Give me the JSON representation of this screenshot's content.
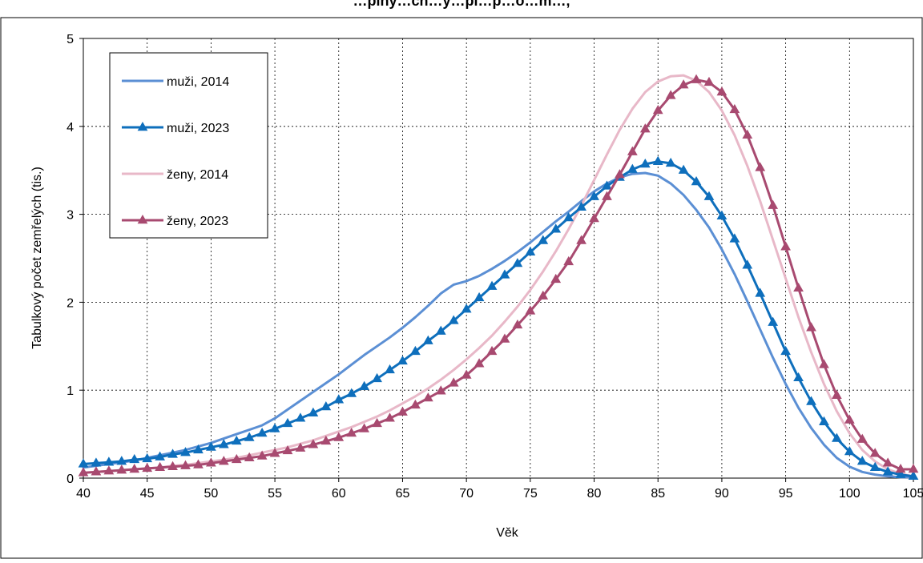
{
  "chart_data": {
    "type": "line",
    "title": "",
    "title_partial_visible": "…plný…ch…y…pl…p…o…m…,",
    "xlabel": "Věk",
    "ylabel": "Tabulkový počet zemřelých (tis.)",
    "xlim": [
      40,
      105
    ],
    "ylim": [
      0,
      5
    ],
    "x_ticks": [
      "40",
      "45",
      "50",
      "55",
      "60",
      "65",
      "70",
      "75",
      "80",
      "85",
      "90",
      "95",
      "100",
      "105"
    ],
    "y_ticks": [
      "0",
      "1",
      "2",
      "3",
      "4",
      "5"
    ],
    "grid": true,
    "legend_position": "top-left",
    "x": [
      40,
      41,
      42,
      43,
      44,
      45,
      46,
      47,
      48,
      49,
      50,
      51,
      52,
      53,
      54,
      55,
      56,
      57,
      58,
      59,
      60,
      61,
      62,
      63,
      64,
      65,
      66,
      67,
      68,
      69,
      70,
      71,
      72,
      73,
      74,
      75,
      76,
      77,
      78,
      79,
      80,
      81,
      82,
      83,
      84,
      85,
      86,
      87,
      88,
      89,
      90,
      91,
      92,
      93,
      94,
      95,
      96,
      97,
      98,
      99,
      100,
      101,
      102,
      103,
      104,
      105
    ],
    "series": [
      {
        "name": "muži, 2014",
        "color": "#5b8fd4",
        "marker": "none",
        "values": [
          0.12,
          0.14,
          0.16,
          0.18,
          0.2,
          0.23,
          0.26,
          0.29,
          0.32,
          0.36,
          0.4,
          0.45,
          0.5,
          0.55,
          0.6,
          0.68,
          0.78,
          0.88,
          0.98,
          1.08,
          1.18,
          1.29,
          1.4,
          1.5,
          1.6,
          1.71,
          1.83,
          1.96,
          2.1,
          2.2,
          2.24,
          2.3,
          2.38,
          2.47,
          2.57,
          2.68,
          2.8,
          2.92,
          3.03,
          3.15,
          3.26,
          3.35,
          3.42,
          3.46,
          3.47,
          3.44,
          3.35,
          3.22,
          3.05,
          2.85,
          2.6,
          2.32,
          2.01,
          1.69,
          1.37,
          1.07,
          0.8,
          0.57,
          0.38,
          0.23,
          0.13,
          0.07,
          0.04,
          0.02,
          0.01,
          0.01
        ]
      },
      {
        "name": "muži, 2023",
        "color": "#0e6fbc",
        "marker": "triangle",
        "values": [
          0.16,
          0.17,
          0.18,
          0.19,
          0.21,
          0.22,
          0.24,
          0.27,
          0.29,
          0.32,
          0.35,
          0.38,
          0.42,
          0.46,
          0.51,
          0.56,
          0.62,
          0.68,
          0.74,
          0.81,
          0.89,
          0.96,
          1.04,
          1.13,
          1.23,
          1.33,
          1.44,
          1.56,
          1.67,
          1.79,
          1.92,
          2.05,
          2.18,
          2.31,
          2.44,
          2.57,
          2.7,
          2.83,
          2.96,
          3.08,
          3.2,
          3.32,
          3.42,
          3.51,
          3.57,
          3.6,
          3.58,
          3.5,
          3.37,
          3.2,
          2.98,
          2.72,
          2.42,
          2.1,
          1.77,
          1.44,
          1.14,
          0.87,
          0.64,
          0.45,
          0.3,
          0.19,
          0.12,
          0.07,
          0.04,
          0.02
        ]
      },
      {
        "name": "ženy, 2014",
        "color": "#e8b8c8",
        "marker": "none",
        "values": [
          0.06,
          0.07,
          0.08,
          0.09,
          0.1,
          0.11,
          0.12,
          0.14,
          0.15,
          0.17,
          0.19,
          0.21,
          0.23,
          0.26,
          0.29,
          0.32,
          0.35,
          0.39,
          0.43,
          0.48,
          0.53,
          0.58,
          0.64,
          0.7,
          0.77,
          0.85,
          0.93,
          1.02,
          1.12,
          1.23,
          1.35,
          1.48,
          1.62,
          1.78,
          1.95,
          2.14,
          2.35,
          2.58,
          2.83,
          3.1,
          3.39,
          3.68,
          3.96,
          4.2,
          4.39,
          4.51,
          4.57,
          4.58,
          4.52,
          4.39,
          4.18,
          3.9,
          3.55,
          3.15,
          2.71,
          2.27,
          1.83,
          1.43,
          1.07,
          0.76,
          0.51,
          0.32,
          0.19,
          0.1,
          0.05,
          0.02
        ]
      },
      {
        "name": "ženy, 2023",
        "color": "#a84a70",
        "marker": "triangle",
        "values": [
          0.06,
          0.07,
          0.08,
          0.09,
          0.1,
          0.11,
          0.12,
          0.13,
          0.14,
          0.15,
          0.17,
          0.19,
          0.21,
          0.23,
          0.25,
          0.28,
          0.31,
          0.34,
          0.38,
          0.42,
          0.46,
          0.51,
          0.56,
          0.62,
          0.68,
          0.75,
          0.83,
          0.91,
          0.99,
          1.08,
          1.17,
          1.3,
          1.44,
          1.58,
          1.74,
          1.9,
          2.07,
          2.26,
          2.46,
          2.7,
          2.95,
          3.2,
          3.45,
          3.71,
          3.97,
          4.18,
          4.35,
          4.47,
          4.53,
          4.5,
          4.39,
          4.19,
          3.9,
          3.53,
          3.1,
          2.63,
          2.16,
          1.71,
          1.29,
          0.94,
          0.66,
          0.44,
          0.28,
          0.17,
          0.1,
          0.1
        ]
      }
    ]
  }
}
